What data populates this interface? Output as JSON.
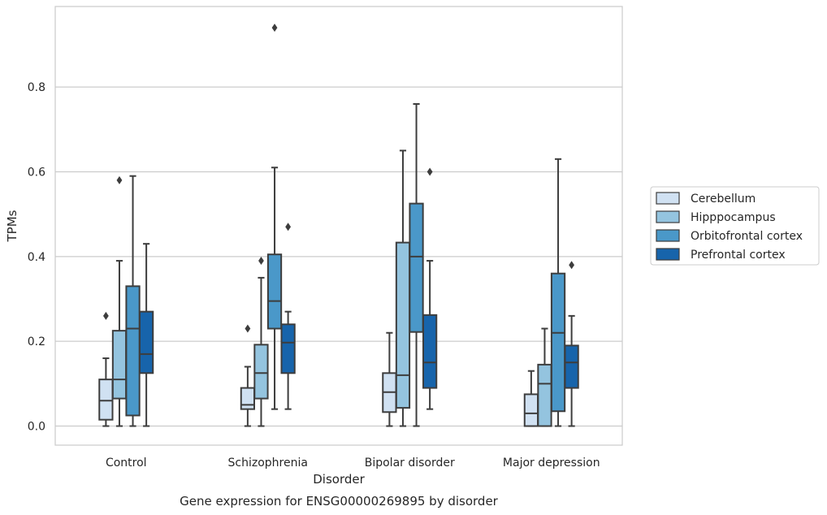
{
  "chart_data": {
    "type": "box",
    "caption": "Gene expression for ENSG00000269895 by disorder",
    "xlabel": "Disorder",
    "ylabel": "TPMs",
    "ylim": [
      -0.045,
      0.99
    ],
    "yticks": [
      0.0,
      0.2,
      0.4,
      0.6,
      0.8
    ],
    "ytick_labels": [
      "0.0",
      "0.2",
      "0.4",
      "0.6",
      "0.8"
    ],
    "grid": "horizontal",
    "legend_position": "right",
    "categories": [
      "Control",
      "Schizophrenia",
      "Bipolar disorder",
      "Major depression"
    ],
    "series": [
      {
        "name": "Cerebellum",
        "color": "#d0e1f2",
        "boxes": [
          {
            "whislo": 0.0,
            "q1": 0.015,
            "med": 0.06,
            "q3": 0.11,
            "whishi": 0.16,
            "fliers": [
              0.26
            ]
          },
          {
            "whislo": 0.0,
            "q1": 0.04,
            "med": 0.05,
            "q3": 0.09,
            "whishi": 0.14,
            "fliers": [
              0.23
            ]
          },
          {
            "whislo": 0.0,
            "q1": 0.033,
            "med": 0.08,
            "q3": 0.125,
            "whishi": 0.22,
            "fliers": []
          },
          {
            "whislo": 0.0,
            "q1": 0.0,
            "med": 0.03,
            "q3": 0.075,
            "whishi": 0.13,
            "fliers": []
          }
        ]
      },
      {
        "name": "Hipppocampus",
        "color": "#94c4df",
        "boxes": [
          {
            "whislo": 0.0,
            "q1": 0.065,
            "med": 0.11,
            "q3": 0.225,
            "whishi": 0.39,
            "fliers": [
              0.58
            ]
          },
          {
            "whislo": 0.0,
            "q1": 0.065,
            "med": 0.125,
            "q3": 0.192,
            "whishi": 0.35,
            "fliers": [
              0.39
            ]
          },
          {
            "whislo": 0.0,
            "q1": 0.043,
            "med": 0.12,
            "q3": 0.433,
            "whishi": 0.65,
            "fliers": []
          },
          {
            "whislo": 0.0,
            "q1": 0.0,
            "med": 0.1,
            "q3": 0.145,
            "whishi": 0.23,
            "fliers": []
          }
        ]
      },
      {
        "name": "Orbitofrontal cortex",
        "color": "#4a98c9",
        "boxes": [
          {
            "whislo": 0.0,
            "q1": 0.025,
            "med": 0.23,
            "q3": 0.33,
            "whishi": 0.59,
            "fliers": []
          },
          {
            "whislo": 0.04,
            "q1": 0.23,
            "med": 0.295,
            "q3": 0.405,
            "whishi": 0.61,
            "fliers": [
              0.94
            ]
          },
          {
            "whislo": 0.0,
            "q1": 0.222,
            "med": 0.4,
            "q3": 0.525,
            "whishi": 0.76,
            "fliers": []
          },
          {
            "whislo": 0.0,
            "q1": 0.035,
            "med": 0.22,
            "q3": 0.36,
            "whishi": 0.63,
            "fliers": []
          }
        ]
      },
      {
        "name": "Prefrontal cortex",
        "color": "#1764ab",
        "boxes": [
          {
            "whislo": 0.0,
            "q1": 0.125,
            "med": 0.17,
            "q3": 0.27,
            "whishi": 0.43,
            "fliers": []
          },
          {
            "whislo": 0.04,
            "q1": 0.125,
            "med": 0.197,
            "q3": 0.24,
            "whishi": 0.27,
            "fliers": [
              0.47
            ]
          },
          {
            "whislo": 0.04,
            "q1": 0.09,
            "med": 0.15,
            "q3": 0.262,
            "whishi": 0.39,
            "fliers": [
              0.6
            ]
          },
          {
            "whislo": 0.0,
            "q1": 0.09,
            "med": 0.15,
            "q3": 0.19,
            "whishi": 0.26,
            "fliers": [
              0.38
            ]
          }
        ]
      }
    ]
  }
}
